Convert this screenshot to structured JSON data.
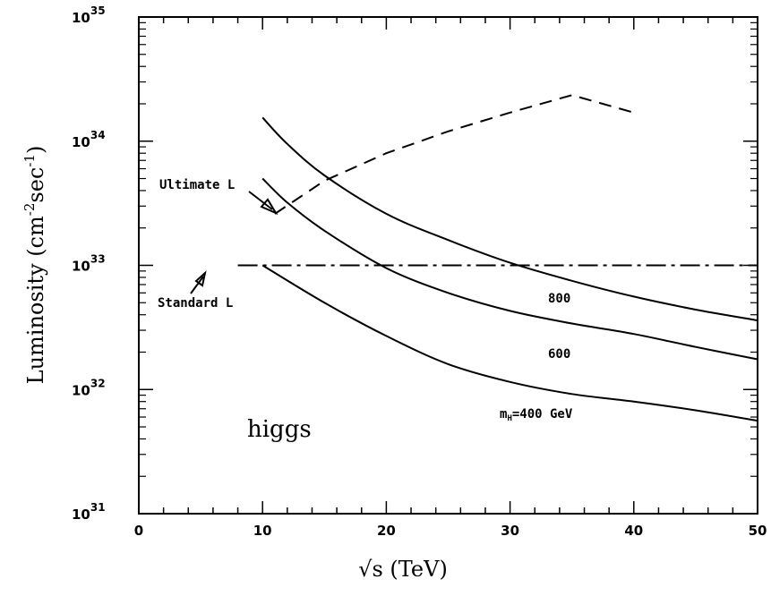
{
  "chart_data": {
    "type": "line",
    "xlabel_prefix": "√s",
    "xlabel_unit": "(TeV)",
    "ylabel_prefix": "Luminosity (cm",
    "ylabel_exp1": "-2",
    "ylabel_mid": "sec",
    "ylabel_exp2": "-1",
    "ylabel_suffix": ")",
    "xlim": [
      0,
      50
    ],
    "ylim_log10": [
      31,
      35
    ],
    "x_ticks": [
      "0",
      "10",
      "20",
      "30",
      "40",
      "50"
    ],
    "x_tick_values": [
      0,
      10,
      20,
      30,
      40,
      50
    ],
    "y_ticks": [
      {
        "base": "10",
        "exp": "31",
        "value": 31
      },
      {
        "base": "10",
        "exp": "32",
        "value": 32
      },
      {
        "base": "10",
        "exp": "33",
        "value": 33
      },
      {
        "base": "10",
        "exp": "34",
        "value": 34
      },
      {
        "base": "10",
        "exp": "35",
        "value": 35
      }
    ],
    "series": [
      {
        "label": "m_H=400 GeV",
        "style": "solid",
        "x": [
          10,
          15,
          20,
          25,
          30,
          35,
          40,
          45,
          50
        ],
        "y": [
          1e+33,
          5e+32,
          2.7e+32,
          1.6e+32,
          1.15e+32,
          9.2e+31,
          8e+31,
          6.8e+31,
          5.6e+31
        ]
      },
      {
        "label": "600",
        "style": "solid",
        "x": [
          10,
          12,
          15,
          20,
          25,
          30,
          35,
          40,
          45,
          50
        ],
        "y": [
          5e+33,
          3.2e+33,
          1.9e+33,
          9.5e+32,
          6e+32,
          4.3e+32,
          3.4e+32,
          2.8e+32,
          2.2e+32,
          1.75e+32
        ]
      },
      {
        "label": "800",
        "style": "solid",
        "x": [
          10,
          12,
          15,
          20,
          25,
          30,
          35,
          40,
          45,
          50
        ],
        "y": [
          1.55e+34,
          9.5e+33,
          5.3e+33,
          2.6e+33,
          1.6e+33,
          1.05e+33,
          7.5e+32,
          5.6e+32,
          4.4e+32,
          3.6e+32
        ]
      },
      {
        "label": "Ultimate L",
        "style": "dashed",
        "x": [
          11,
          15,
          20,
          25,
          30,
          35,
          40
        ],
        "y": [
          2.6e+33,
          4.8e+33,
          8e+33,
          1.2e+34,
          1.7e+34,
          2.35e+34,
          1.7e+34
        ]
      },
      {
        "label": "Standard L",
        "style": "dash-dot",
        "x": [
          8,
          10,
          20,
          30,
          40,
          50
        ],
        "y": [
          1e+33,
          1e+33,
          1e+33,
          1e+33,
          1e+33,
          1e+33
        ]
      }
    ],
    "annotations": {
      "ultimate": "Ultimate L",
      "standard": "Standard L",
      "label_800": "800",
      "label_600": "600",
      "label_400_m": "m",
      "label_400_sub": "H",
      "label_400_rest": "=400 GeV",
      "process": "higgs"
    },
    "grid": false,
    "legend": "none"
  }
}
